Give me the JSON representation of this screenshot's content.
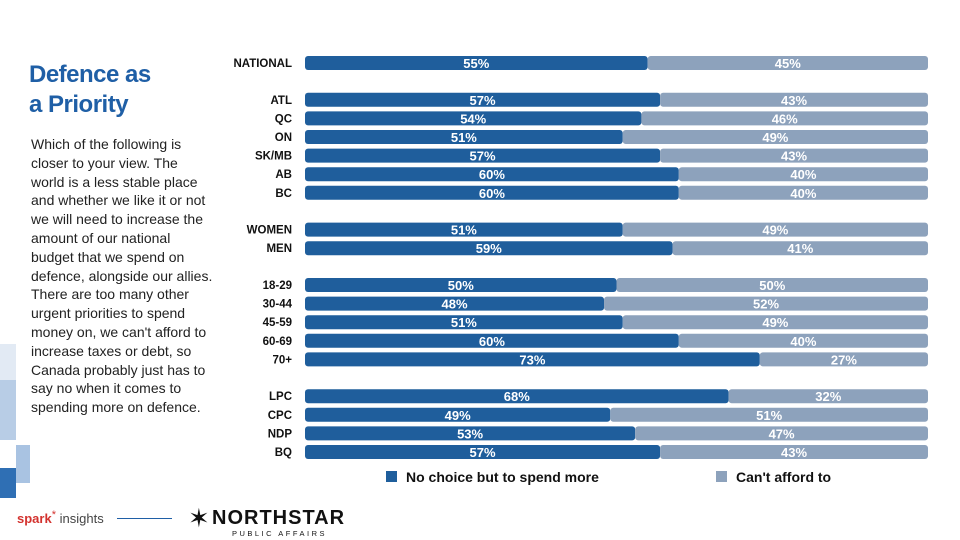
{
  "title_line1": "Defence as",
  "title_line2": "a Priority",
  "body": "Which of the following is closer to your view. The world is a less stable place and whether we like it or not we will need to increase the amount of our national budget that we spend on defence, alongside our allies. There are too many other urgent priorities to spend money on, we can't afford to increase taxes or debt, so Canada probably just has to say no when it comes to spending more on defence.",
  "colors": {
    "spend_more": "#1f5e9c",
    "cant_afford": "#8da2bc",
    "title": "#1f5fa6",
    "deco_light": "#dfe8f3",
    "deco_mid": "#a9c3e2",
    "deco_dark": "#2f6fb4"
  },
  "chart_data": {
    "type": "bar",
    "orientation": "horizontal",
    "stacked": true,
    "normalized_percent": true,
    "categories": [
      "NATIONAL",
      "ATL",
      "QC",
      "ON",
      "SK/MB",
      "AB",
      "BC",
      "WOMEN",
      "MEN",
      "18-29",
      "30-44",
      "45-59",
      "60-69",
      "70+",
      "LPC",
      "CPC",
      "NDP",
      "BQ"
    ],
    "groups": [
      [
        "NATIONAL"
      ],
      [
        "ATL",
        "QC",
        "ON",
        "SK/MB",
        "AB",
        "BC"
      ],
      [
        "WOMEN",
        "MEN"
      ],
      [
        "18-29",
        "30-44",
        "45-59",
        "60-69",
        "70+"
      ],
      [
        "LPC",
        "CPC",
        "NDP",
        "BQ"
      ]
    ],
    "series": [
      {
        "name": "No choice but to spend more",
        "values": [
          55,
          57,
          54,
          51,
          57,
          60,
          60,
          51,
          59,
          50,
          48,
          51,
          60,
          73,
          68,
          49,
          53,
          57
        ]
      },
      {
        "name": "Can't afford to",
        "values": [
          45,
          43,
          46,
          49,
          43,
          40,
          40,
          49,
          41,
          50,
          52,
          49,
          40,
          27,
          32,
          51,
          47,
          43
        ]
      }
    ],
    "value_suffix": "%",
    "xlim": [
      0,
      100
    ],
    "legend": "bottom"
  },
  "logos": {
    "spark_a": "spark",
    "spark_b": "insights",
    "northstar": "NORTHSTAR",
    "northstar_sub": "PUBLIC AFFAIRS"
  }
}
